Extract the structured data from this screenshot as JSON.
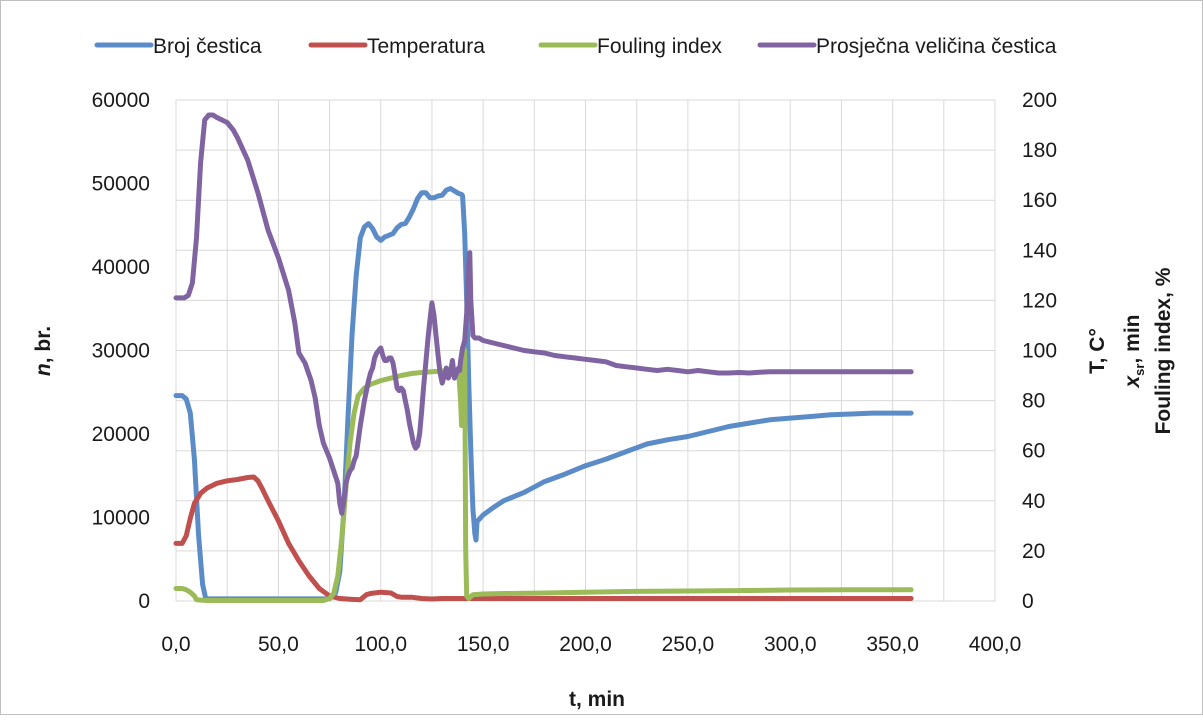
{
  "chart_data": {
    "type": "line",
    "legend_position": "top",
    "grid": true,
    "legend": [
      "Broj čestica",
      "Temperatura",
      "Fouling index",
      "Prosječna veličina čestica"
    ],
    "xaxis": {
      "label": "t, min",
      "range": [
        0,
        400
      ],
      "ticks": [
        "0,0",
        "50,0",
        "100,0",
        "150,0",
        "200,0",
        "250,0",
        "300,0",
        "350,0",
        "400,0"
      ],
      "tick_values": [
        0,
        50,
        100,
        150,
        200,
        250,
        300,
        350,
        400
      ]
    },
    "yaxis_left": {
      "label_italic": "n",
      "label_rest": ", br.",
      "range": [
        0,
        60000
      ],
      "ticks": [
        "0",
        "10000",
        "20000",
        "30000",
        "40000",
        "50000",
        "60000"
      ],
      "tick_values": [
        0,
        10000,
        20000,
        30000,
        40000,
        50000,
        60000
      ]
    },
    "yaxis_right": {
      "label_line1": "T, C°",
      "label_line2_italic": "x",
      "label_line2_sub": "sr",
      "label_line2_rest": ", min",
      "label_line3": "Fouling index, %",
      "range": [
        0,
        200
      ],
      "ticks": [
        "0",
        "20",
        "40",
        "60",
        "80",
        "100",
        "120",
        "140",
        "160",
        "180",
        "200"
      ],
      "tick_values": [
        0,
        20,
        40,
        60,
        80,
        100,
        120,
        140,
        160,
        180,
        200
      ]
    },
    "series": [
      {
        "name": "Broj čestica",
        "color": "#5b8cc8",
        "axis": "left",
        "points": [
          [
            0,
            24600
          ],
          [
            3,
            24600
          ],
          [
            5,
            24200
          ],
          [
            7,
            22500
          ],
          [
            9,
            17000
          ],
          [
            11,
            8000
          ],
          [
            13,
            2000
          ],
          [
            14.5,
            300
          ],
          [
            16,
            250
          ],
          [
            30,
            250
          ],
          [
            50,
            250
          ],
          [
            70,
            250
          ],
          [
            75,
            260
          ],
          [
            78,
            1000
          ],
          [
            80,
            3500
          ],
          [
            82,
            11000
          ],
          [
            84,
            22000
          ],
          [
            86,
            32000
          ],
          [
            88,
            39000
          ],
          [
            90,
            43500
          ],
          [
            92,
            44800
          ],
          [
            94,
            45200
          ],
          [
            96,
            44600
          ],
          [
            98,
            43600
          ],
          [
            100,
            43200
          ],
          [
            102,
            43600
          ],
          [
            104,
            43800
          ],
          [
            106,
            44000
          ],
          [
            108,
            44700
          ],
          [
            110,
            45100
          ],
          [
            112,
            45200
          ],
          [
            114,
            46000
          ],
          [
            116,
            47000
          ],
          [
            118,
            48200
          ],
          [
            120,
            48900
          ],
          [
            122,
            48900
          ],
          [
            124,
            48300
          ],
          [
            126,
            48300
          ],
          [
            128,
            48500
          ],
          [
            130,
            48600
          ],
          [
            132,
            49200
          ],
          [
            134,
            49400
          ],
          [
            136,
            49100
          ],
          [
            138,
            48800
          ],
          [
            139.5,
            48700
          ],
          [
            140,
            48500
          ],
          [
            141,
            44000
          ],
          [
            142,
            36000
          ],
          [
            143,
            26000
          ],
          [
            144,
            18000
          ],
          [
            145,
            11000
          ],
          [
            146,
            8000
          ],
          [
            146.5,
            7300
          ],
          [
            147,
            9500
          ],
          [
            150,
            10300
          ],
          [
            155,
            11200
          ],
          [
            160,
            12000
          ],
          [
            170,
            13000
          ],
          [
            180,
            14300
          ],
          [
            190,
            15200
          ],
          [
            200,
            16200
          ],
          [
            210,
            17000
          ],
          [
            220,
            17900
          ],
          [
            230,
            18800
          ],
          [
            240,
            19300
          ],
          [
            250,
            19700
          ],
          [
            260,
            20300
          ],
          [
            270,
            20900
          ],
          [
            280,
            21300
          ],
          [
            290,
            21700
          ],
          [
            300,
            21900
          ],
          [
            310,
            22100
          ],
          [
            320,
            22300
          ],
          [
            330,
            22400
          ],
          [
            340,
            22500
          ],
          [
            350,
            22500
          ],
          [
            359,
            22500
          ]
        ]
      },
      {
        "name": "Temperatura",
        "color": "#c0504d",
        "axis": "right",
        "points": [
          [
            0,
            23
          ],
          [
            3,
            23
          ],
          [
            5,
            26
          ],
          [
            7,
            33
          ],
          [
            9,
            39
          ],
          [
            12,
            43
          ],
          [
            15,
            45
          ],
          [
            20,
            47
          ],
          [
            25,
            48
          ],
          [
            30,
            48.5
          ],
          [
            35,
            49.3
          ],
          [
            38,
            49.5
          ],
          [
            40,
            48
          ],
          [
            42,
            45
          ],
          [
            45,
            40
          ],
          [
            50,
            32
          ],
          [
            55,
            23
          ],
          [
            60,
            16
          ],
          [
            65,
            10
          ],
          [
            70,
            5
          ],
          [
            75,
            2
          ],
          [
            80,
            1
          ],
          [
            85,
            0.7
          ],
          [
            90,
            0.5
          ],
          [
            93,
            2.5
          ],
          [
            95,
            3
          ],
          [
            100,
            3.5
          ],
          [
            105,
            3.2
          ],
          [
            108,
            1.8
          ],
          [
            110,
            1.5
          ],
          [
            115,
            1.5
          ],
          [
            120,
            1
          ],
          [
            125,
            0.8
          ],
          [
            130,
            1
          ],
          [
            140,
            1
          ],
          [
            150,
            1
          ],
          [
            200,
            1
          ],
          [
            250,
            1
          ],
          [
            300,
            1
          ],
          [
            359,
            1
          ]
        ]
      },
      {
        "name": "Fouling index",
        "color": "#9bbb59",
        "axis": "right",
        "points": [
          [
            0,
            5
          ],
          [
            3,
            5
          ],
          [
            5,
            4.5
          ],
          [
            7,
            3.5
          ],
          [
            9,
            2
          ],
          [
            10,
            0.5
          ],
          [
            15,
            0.2
          ],
          [
            50,
            0.2
          ],
          [
            72,
            0.2
          ],
          [
            75,
            1
          ],
          [
            77,
            3
          ],
          [
            79,
            10
          ],
          [
            81,
            25
          ],
          [
            83,
            45
          ],
          [
            85,
            63
          ],
          [
            87,
            75
          ],
          [
            89,
            82
          ],
          [
            92,
            85
          ],
          [
            95,
            86.5
          ],
          [
            100,
            88
          ],
          [
            105,
            89
          ],
          [
            110,
            90
          ],
          [
            115,
            90.8
          ],
          [
            120,
            91.2
          ],
          [
            125,
            91.5
          ],
          [
            130,
            91.8
          ],
          [
            135,
            92
          ],
          [
            138,
            92
          ],
          [
            139,
            80
          ],
          [
            139.5,
            70
          ],
          [
            140,
            85
          ],
          [
            140.5,
            101
          ],
          [
            141,
            100
          ],
          [
            141.5,
            20
          ],
          [
            142,
            2
          ],
          [
            143,
            1
          ],
          [
            145,
            2.5
          ],
          [
            150,
            2.8
          ],
          [
            160,
            3
          ],
          [
            180,
            3.2
          ],
          [
            200,
            3.5
          ],
          [
            220,
            3.8
          ],
          [
            250,
            4
          ],
          [
            280,
            4.2
          ],
          [
            300,
            4.4
          ],
          [
            330,
            4.5
          ],
          [
            359,
            4.5
          ]
        ]
      },
      {
        "name": "Prosječna veličina čestica",
        "color": "#8064a2",
        "axis": "right",
        "points": [
          [
            0,
            121
          ],
          [
            4,
            121
          ],
          [
            6,
            122
          ],
          [
            8,
            127
          ],
          [
            10,
            145
          ],
          [
            12,
            175
          ],
          [
            14,
            192
          ],
          [
            16,
            194
          ],
          [
            18,
            194
          ],
          [
            20,
            193
          ],
          [
            25,
            191
          ],
          [
            28,
            188
          ],
          [
            30,
            185
          ],
          [
            35,
            176
          ],
          [
            40,
            163
          ],
          [
            45,
            148
          ],
          [
            50,
            137
          ],
          [
            55,
            124
          ],
          [
            58,
            111
          ],
          [
            60,
            99
          ],
          [
            63,
            95
          ],
          [
            66,
            88
          ],
          [
            68,
            81
          ],
          [
            70,
            70
          ],
          [
            72,
            63
          ],
          [
            75,
            57
          ],
          [
            77,
            52
          ],
          [
            79,
            47
          ],
          [
            80,
            39
          ],
          [
            81,
            35
          ],
          [
            82,
            40
          ],
          [
            83,
            47
          ],
          [
            84,
            50
          ],
          [
            85,
            52
          ],
          [
            86,
            53
          ],
          [
            87,
            56
          ],
          [
            88,
            58
          ],
          [
            90,
            70
          ],
          [
            92,
            80
          ],
          [
            94,
            88
          ],
          [
            95,
            91
          ],
          [
            96,
            93
          ],
          [
            97,
            97
          ],
          [
            98,
            99
          ],
          [
            99,
            100
          ],
          [
            100,
            101
          ],
          [
            101,
            98
          ],
          [
            102,
            96
          ],
          [
            103,
            96
          ],
          [
            104,
            97
          ],
          [
            105,
            97
          ],
          [
            106,
            95
          ],
          [
            107,
            90
          ],
          [
            108,
            85
          ],
          [
            109,
            84
          ],
          [
            110,
            85
          ],
          [
            111,
            84
          ],
          [
            112,
            80
          ],
          [
            113,
            76
          ],
          [
            114,
            71
          ],
          [
            115,
            67
          ],
          [
            116,
            63
          ],
          [
            117,
            61
          ],
          [
            118,
            62
          ],
          [
            119,
            67
          ],
          [
            120,
            76
          ],
          [
            121,
            86
          ],
          [
            122,
            95
          ],
          [
            123,
            104
          ],
          [
            124,
            112
          ],
          [
            125,
            119
          ],
          [
            126,
            114
          ],
          [
            127,
            106
          ],
          [
            128,
            98
          ],
          [
            129,
            91
          ],
          [
            130,
            87
          ],
          [
            131,
            90
          ],
          [
            132,
            93
          ],
          [
            133,
            89
          ],
          [
            134,
            91
          ],
          [
            135,
            96
          ],
          [
            136,
            89
          ],
          [
            137,
            91
          ],
          [
            138,
            93
          ],
          [
            138.5,
            92
          ],
          [
            139,
            96
          ],
          [
            140,
            101
          ],
          [
            141,
            104
          ],
          [
            142,
            115
          ],
          [
            143,
            135
          ],
          [
            143.5,
            139
          ],
          [
            144,
            120
          ],
          [
            145,
            106
          ],
          [
            146,
            105
          ],
          [
            148,
            105
          ],
          [
            150,
            104
          ],
          [
            155,
            103
          ],
          [
            160,
            102
          ],
          [
            165,
            101
          ],
          [
            170,
            100
          ],
          [
            175,
            99.5
          ],
          [
            180,
            99
          ],
          [
            185,
            98
          ],
          [
            190,
            97.5
          ],
          [
            195,
            97
          ],
          [
            200,
            96.5
          ],
          [
            205,
            96
          ],
          [
            210,
            95.5
          ],
          [
            215,
            94
          ],
          [
            220,
            93.5
          ],
          [
            225,
            93
          ],
          [
            230,
            92.5
          ],
          [
            235,
            92
          ],
          [
            240,
            92.5
          ],
          [
            245,
            92
          ],
          [
            250,
            91.5
          ],
          [
            255,
            92
          ],
          [
            260,
            91.5
          ],
          [
            265,
            91
          ],
          [
            270,
            91
          ],
          [
            275,
            91.2
          ],
          [
            280,
            91
          ],
          [
            285,
            91.3
          ],
          [
            290,
            91.5
          ],
          [
            295,
            91.5
          ],
          [
            300,
            91.5
          ],
          [
            310,
            91.5
          ],
          [
            320,
            91.5
          ],
          [
            330,
            91.5
          ],
          [
            340,
            91.5
          ],
          [
            359,
            91.5
          ]
        ]
      }
    ]
  }
}
